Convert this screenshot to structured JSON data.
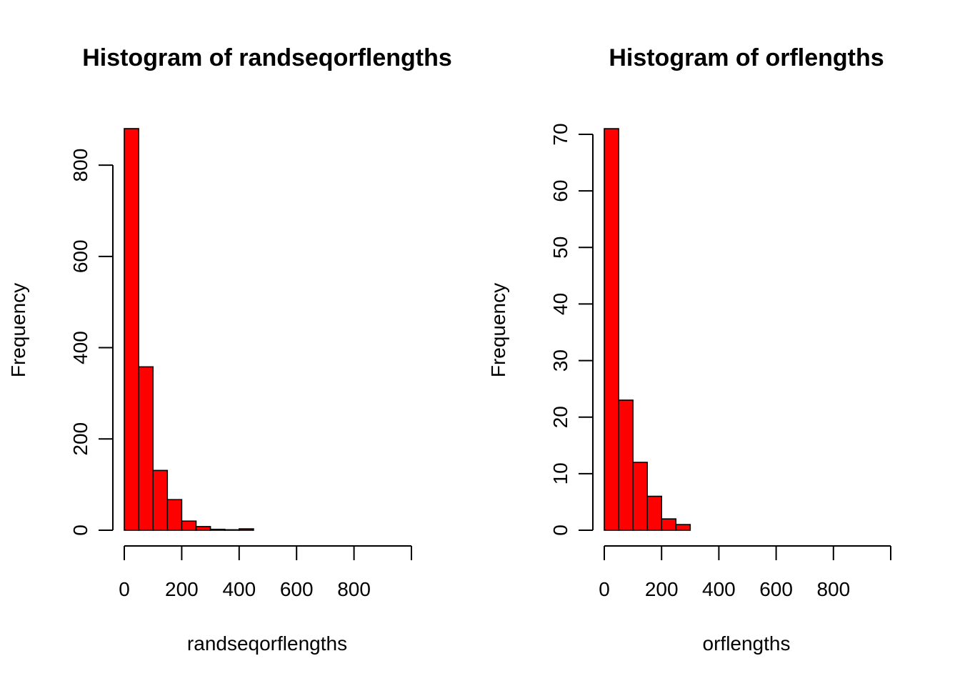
{
  "chart_data": [
    {
      "type": "bar",
      "title": "Histogram of randseqorflengths",
      "xlabel": "randseqorflengths",
      "ylabel": "Frequency",
      "bar_color": "#ff0000",
      "bin_edges": [
        0,
        50,
        100,
        150,
        200,
        250,
        300,
        350,
        400,
        450,
        500,
        550,
        600,
        650,
        700,
        750,
        800,
        850,
        900,
        950,
        1000,
        1050
      ],
      "values": [
        880,
        358,
        131,
        67,
        20,
        8,
        2,
        1,
        3,
        0,
        0,
        0,
        0,
        0,
        0,
        0,
        0,
        0,
        0,
        0,
        0
      ],
      "xticks": [
        "0",
        "200",
        "400",
        "600",
        "800",
        ""
      ],
      "xtick_values": [
        0,
        200,
        400,
        600,
        800,
        1000
      ],
      "yticks": [
        "0",
        "200",
        "400",
        "600",
        "800"
      ],
      "ytick_values": [
        0,
        200,
        400,
        600,
        800
      ],
      "xlim": [
        0,
        1050
      ],
      "ylim": [
        0,
        880
      ],
      "grid": false
    },
    {
      "type": "bar",
      "title": "Histogram of orflengths",
      "xlabel": "orflengths",
      "ylabel": "Frequency",
      "bar_color": "#ff0000",
      "bin_edges": [
        0,
        50,
        100,
        150,
        200,
        250,
        300,
        350,
        400,
        450,
        500,
        550,
        600,
        650,
        700,
        750,
        800,
        850,
        900,
        950,
        1000,
        1050
      ],
      "values": [
        71,
        23,
        12,
        6,
        2,
        1,
        0,
        0,
        0,
        0,
        0,
        0,
        0,
        0,
        0,
        0,
        0,
        0,
        0,
        0,
        0
      ],
      "xticks": [
        "0",
        "200",
        "400",
        "600",
        "800",
        ""
      ],
      "xtick_values": [
        0,
        200,
        400,
        600,
        800,
        1000
      ],
      "yticks": [
        "0",
        "10",
        "20",
        "30",
        "40",
        "50",
        "60",
        "70"
      ],
      "ytick_values": [
        0,
        10,
        20,
        30,
        40,
        50,
        60,
        70
      ],
      "xlim": [
        0,
        1050
      ],
      "ylim": [
        0,
        71
      ],
      "grid": false
    }
  ]
}
